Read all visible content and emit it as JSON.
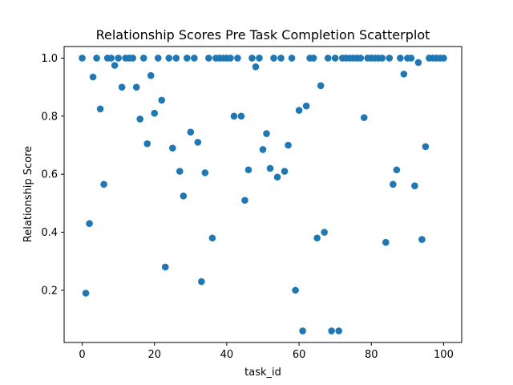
{
  "chart_data": {
    "type": "scatter",
    "title": "Relationship Scores Pre Task Completion Scatterplot",
    "xlabel": "task_id",
    "ylabel": "Relationship Score",
    "xlim": [
      -5,
      105
    ],
    "ylim": [
      0.02,
      1.04
    ],
    "xticks": [
      0,
      20,
      40,
      60,
      80,
      100
    ],
    "xtick_labels": [
      "0",
      "20",
      "40",
      "60",
      "80",
      "100"
    ],
    "yticks": [
      0.2,
      0.4,
      0.6,
      0.8,
      1.0
    ],
    "ytick_labels": [
      "0.2",
      "0.4",
      "0.6",
      "0.8",
      "1.0"
    ],
    "marker_color": "#1f77b4",
    "grid": false,
    "legend": "none",
    "points": [
      [
        0,
        1.0
      ],
      [
        1,
        0.19
      ],
      [
        2,
        0.43
      ],
      [
        3,
        0.935
      ],
      [
        4,
        1.0
      ],
      [
        5,
        0.825
      ],
      [
        6,
        0.565
      ],
      [
        7,
        1.0
      ],
      [
        8,
        1.0
      ],
      [
        9,
        0.975
      ],
      [
        10,
        1.0
      ],
      [
        11,
        0.9
      ],
      [
        12,
        1.0
      ],
      [
        13,
        1.0
      ],
      [
        14,
        1.0
      ],
      [
        15,
        0.9
      ],
      [
        16,
        0.79
      ],
      [
        17,
        1.0
      ],
      [
        18,
        0.705
      ],
      [
        19,
        0.94
      ],
      [
        20,
        0.81
      ],
      [
        21,
        1.0
      ],
      [
        22,
        0.855
      ],
      [
        23,
        0.28
      ],
      [
        24,
        1.0
      ],
      [
        25,
        0.69
      ],
      [
        26,
        1.0
      ],
      [
        27,
        0.61
      ],
      [
        28,
        0.525
      ],
      [
        29,
        1.0
      ],
      [
        30,
        0.745
      ],
      [
        31,
        1.0
      ],
      [
        32,
        0.71
      ],
      [
        33,
        0.23
      ],
      [
        34,
        0.605
      ],
      [
        35,
        1.0
      ],
      [
        36,
        0.38
      ],
      [
        37,
        1.0
      ],
      [
        38,
        1.0
      ],
      [
        39,
        1.0
      ],
      [
        40,
        1.0
      ],
      [
        41,
        1.0
      ],
      [
        42,
        0.8
      ],
      [
        43,
        1.0
      ],
      [
        44,
        0.8
      ],
      [
        45,
        0.51
      ],
      [
        46,
        0.615
      ],
      [
        47,
        1.0
      ],
      [
        48,
        0.97
      ],
      [
        49,
        1.0
      ],
      [
        50,
        0.685
      ],
      [
        51,
        0.74
      ],
      [
        52,
        0.62
      ],
      [
        53,
        1.0
      ],
      [
        54,
        0.59
      ],
      [
        55,
        1.0
      ],
      [
        56,
        0.61
      ],
      [
        57,
        0.7
      ],
      [
        58,
        1.0
      ],
      [
        59,
        0.2
      ],
      [
        60,
        0.82
      ],
      [
        61,
        0.06
      ],
      [
        62,
        0.835
      ],
      [
        63,
        1.0
      ],
      [
        64,
        1.0
      ],
      [
        65,
        0.38
      ],
      [
        66,
        0.905
      ],
      [
        67,
        0.4
      ],
      [
        68,
        1.0
      ],
      [
        69,
        0.06
      ],
      [
        70,
        1.0
      ],
      [
        71,
        0.06
      ],
      [
        72,
        1.0
      ],
      [
        73,
        1.0
      ],
      [
        74,
        1.0
      ],
      [
        75,
        1.0
      ],
      [
        76,
        1.0
      ],
      [
        77,
        1.0
      ],
      [
        78,
        0.795
      ],
      [
        79,
        1.0
      ],
      [
        80,
        1.0
      ],
      [
        81,
        1.0
      ],
      [
        82,
        1.0
      ],
      [
        83,
        1.0
      ],
      [
        84,
        0.365
      ],
      [
        85,
        1.0
      ],
      [
        86,
        0.565
      ],
      [
        87,
        0.615
      ],
      [
        88,
        1.0
      ],
      [
        89,
        0.945
      ],
      [
        90,
        1.0
      ],
      [
        91,
        1.0
      ],
      [
        92,
        0.56
      ],
      [
        93,
        0.985
      ],
      [
        94,
        0.375
      ],
      [
        95,
        0.695
      ],
      [
        96,
        1.0
      ],
      [
        97,
        1.0
      ],
      [
        98,
        1.0
      ],
      [
        99,
        1.0
      ],
      [
        100,
        1.0
      ]
    ]
  }
}
